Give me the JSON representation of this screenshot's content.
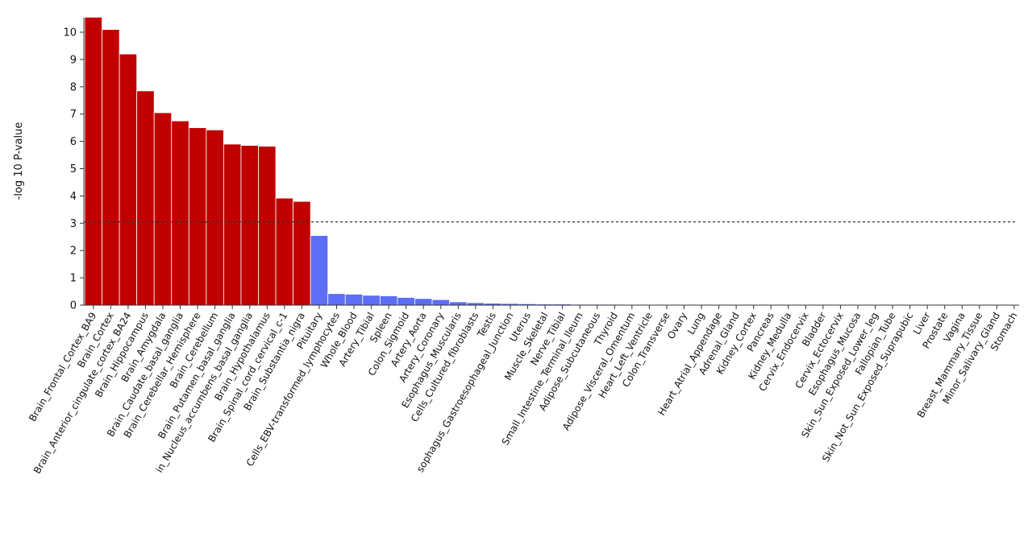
{
  "chart_data": {
    "type": "bar",
    "ylabel": "-log 10 P-value",
    "xlabel": "",
    "ylim": [
      0,
      10.6
    ],
    "yticks": [
      0,
      1,
      2,
      3,
      4,
      5,
      6,
      7,
      8,
      9,
      10
    ],
    "threshold": 3.05,
    "colors": {
      "significant": "#c00000",
      "nonsignificant": "#5b6ef5"
    },
    "categories": [
      "Brain_Frontal_Cortex_BA9",
      "Brain_Cortex",
      "Brain_Anterior_cingulate_cortex_BA24",
      "Brain_Hippocampus",
      "Brain_Amygdala",
      "Brain_Caudate_basal_ganglia",
      "Brain_Cerebellar_Hemisphere",
      "Brain_Cerebellum",
      "Brain_Putamen_basal_ganglia",
      "in_Nucleus_accumbens_basal_ganglia",
      "Brain_Hypothalamus",
      "Brain_Spinal_cord_cervical_c-1",
      "Brain_Substantia_nigra",
      "Pituitary",
      "Cells_EBV-transformed_lymphocytes",
      "Whole_Blood",
      "Artery_Tibial",
      "Spleen",
      "Colon_Sigmoid",
      "Artery_Aorta",
      "Artery_Coronary",
      "Esophagus_Muscularis",
      "Cells_Cultured_fibroblasts",
      "Testis",
      "sophagus_Gastroesophageal_Junction",
      "Uterus",
      "Muscle_Skeletal",
      "Nerve_Tibial",
      "Small_Intestine_Terminal_Ileum",
      "Adipose_Subcutaneous",
      "Thyroid",
      "Adipose_Visceral_Omentum",
      "Heart_Left_Ventricle",
      "Colon_Transverse",
      "Ovary",
      "Lung",
      "Heart_Atrial_Appendage",
      "Adrenal_Gland",
      "Kidney_Cortex",
      "Pancreas",
      "Kidney_Medulla",
      "Cervix_Endocervix",
      "Bladder",
      "Cervix_Ectocervix",
      "Esophagus_Mucosa",
      "Skin_Sun_Exposed_Lower_leg",
      "Fallopian_Tube",
      "Skin_Not_Sun_Exposed_Suprapubic",
      "Liver",
      "Prostate",
      "Vagina",
      "Breast_Mammary_Tissue",
      "Minor_Salivary_Gland",
      "Stomach"
    ],
    "values": [
      10.55,
      10.1,
      9.2,
      7.85,
      7.05,
      6.75,
      6.5,
      6.42,
      5.9,
      5.85,
      5.82,
      3.92,
      3.8,
      2.55,
      0.42,
      0.4,
      0.36,
      0.34,
      0.28,
      0.24,
      0.2,
      0.12,
      0.09,
      0.07,
      0.06,
      0.05,
      0.04,
      0.04,
      0.03,
      0.03,
      0.03,
      0.02,
      0.02,
      0.02,
      0.02,
      0.02,
      0.02,
      0.01,
      0.01,
      0.01,
      0.01,
      0.01,
      0.01,
      0.01,
      0.01,
      0.01,
      0.01,
      0.01,
      0.01,
      0.01,
      0.01,
      0.01,
      0.01,
      0.0
    ]
  }
}
